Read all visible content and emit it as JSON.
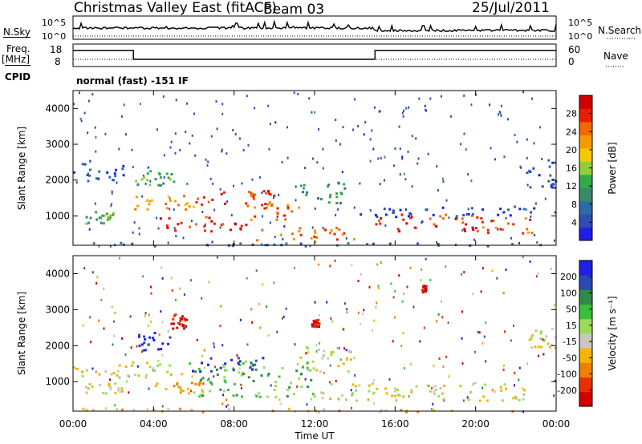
{
  "header": {
    "title": "Christmas Valley East (fitACF)",
    "beam": "Beam 03",
    "date": "25/Jul/2011"
  },
  "strip_labels": {
    "nsky": "N.Sky",
    "nsky_ticks": [
      "10^5",
      "10^0"
    ],
    "freq": "Freq.",
    "freq_unit": "[MHz]",
    "freq_ticks": [
      "18",
      "8"
    ],
    "cpid": "CPID",
    "cpid_value": "normal (fast) -151 IF",
    "nsearch": "N.Search",
    "nsearch_ticks": [
      "10^5",
      "10^0"
    ],
    "nave": "Nave",
    "nave_ticks": [
      "60",
      "0"
    ]
  },
  "colors": {
    "power_scale": [
      "#1f1fe6",
      "#2f4fb0",
      "#2f6aa8",
      "#3a8a6a",
      "#35a84a",
      "#8ccf3a",
      "#f5c800",
      "#f59a00",
      "#f06a00",
      "#e81e00",
      "#d00000"
    ],
    "velocity_scale": [
      "#1f1fe6",
      "#2a4ab0",
      "#2f8a4a",
      "#3cc03a",
      "#9adc5a",
      "#c8c8c0",
      "#f5b400",
      "#f08000",
      "#e83000",
      "#d00000"
    ]
  },
  "chart_data": [
    {
      "type": "heatmap",
      "name": "power-panel",
      "ylabel": "Slant Range [km]",
      "colorbar_label": "Power [dB]",
      "colorbar_ticks": [
        4,
        8,
        12,
        16,
        20,
        24,
        28
      ],
      "ylim": [
        180,
        4500
      ],
      "yticks": [
        1000,
        2000,
        3000,
        4000
      ],
      "xlim_hours": [
        0,
        24
      ],
      "features": [
        {
          "t0": 0.6,
          "t1": 2.0,
          "r0": 800,
          "r1": 1150,
          "level": 4
        },
        {
          "t0": 3.0,
          "t1": 6.0,
          "r0": 1200,
          "r1": 1600,
          "level": 7
        },
        {
          "t0": 6.0,
          "t1": 10.0,
          "r0": 1300,
          "r1": 1800,
          "level": 9
        },
        {
          "t0": 8.5,
          "t1": 11.5,
          "r0": 900,
          "r1": 1400,
          "level": 8
        },
        {
          "t0": 4.0,
          "t1": 9.0,
          "r0": 600,
          "r1": 1000,
          "level": 9
        },
        {
          "t0": 9.0,
          "t1": 14.0,
          "r0": 300,
          "r1": 700,
          "level": 8
        },
        {
          "t0": 15.0,
          "t1": 20.0,
          "r0": 600,
          "r1": 1100,
          "level": 9
        },
        {
          "t0": 20.0,
          "t1": 22.8,
          "r0": 500,
          "r1": 1000,
          "level": 8
        },
        {
          "t0": 14.0,
          "t1": 23.0,
          "r0": 1000,
          "r1": 1300,
          "level": 1
        },
        {
          "t0": 0.0,
          "t1": 2.5,
          "r0": 2000,
          "r1": 2500,
          "level": 1
        },
        {
          "t0": 3.0,
          "t1": 5.0,
          "r0": 1800,
          "r1": 2300,
          "level": 4
        },
        {
          "t0": 11.0,
          "t1": 13.5,
          "r0": 1300,
          "r1": 2000,
          "level": 3
        },
        {
          "t0": 22.5,
          "t1": 24.0,
          "r0": 1800,
          "r1": 2600,
          "level": 1
        },
        {
          "t0": 0.0,
          "t1": 24.0,
          "r0": 180,
          "r1": 280,
          "level": 2
        }
      ]
    },
    {
      "type": "heatmap",
      "name": "velocity-panel",
      "ylabel": "Slant Range [km]",
      "xlabel": "Time UT",
      "colorbar_label": "Velocity [m s⁻¹]",
      "colorbar_ticks": [
        200,
        100,
        50,
        15,
        -15,
        -50,
        -100,
        -200
      ],
      "ylim": [
        180,
        4500
      ],
      "yticks": [
        1000,
        2000,
        3000,
        4000
      ],
      "xlim_hours": [
        0,
        24
      ],
      "xticks": [
        "00:00",
        "04:00",
        "08:00",
        "12:00",
        "16:00",
        "20:00",
        "00:00"
      ],
      "features": [
        {
          "t0": 5.7,
          "t1": 12.0,
          "r0": 600,
          "r1": 1600,
          "level": 3
        },
        {
          "t0": 5.8,
          "t1": 9.5,
          "r0": 1300,
          "r1": 1700,
          "level": 0
        },
        {
          "t0": 3.2,
          "t1": 4.8,
          "r0": 1900,
          "r1": 2400,
          "level": 0
        },
        {
          "t0": 0.0,
          "t1": 5.5,
          "r0": 1100,
          "r1": 1600,
          "level": 5
        },
        {
          "t0": 0.5,
          "t1": 2.5,
          "r0": 700,
          "r1": 1000,
          "level": 5
        },
        {
          "t0": 12.0,
          "t1": 22.5,
          "r0": 500,
          "r1": 1000,
          "level": 5
        },
        {
          "t0": 11.0,
          "t1": 14.0,
          "r0": 1300,
          "r1": 2000,
          "level": 5
        },
        {
          "t0": 4.0,
          "t1": 6.5,
          "r0": 700,
          "r1": 1000,
          "level": 6
        },
        {
          "t0": 4.8,
          "t1": 5.6,
          "r0": 2500,
          "r1": 2900,
          "level": 9
        },
        {
          "t0": 11.8,
          "t1": 12.2,
          "r0": 2550,
          "r1": 2750,
          "level": 9
        },
        {
          "t0": 17.3,
          "t1": 17.5,
          "r0": 3500,
          "r1": 3700,
          "level": 9
        },
        {
          "t0": 0.0,
          "t1": 24.0,
          "r0": 180,
          "r1": 280,
          "level": 6
        },
        {
          "t0": 22.6,
          "t1": 24.0,
          "r0": 1900,
          "r1": 2500,
          "level": 5
        }
      ]
    }
  ]
}
